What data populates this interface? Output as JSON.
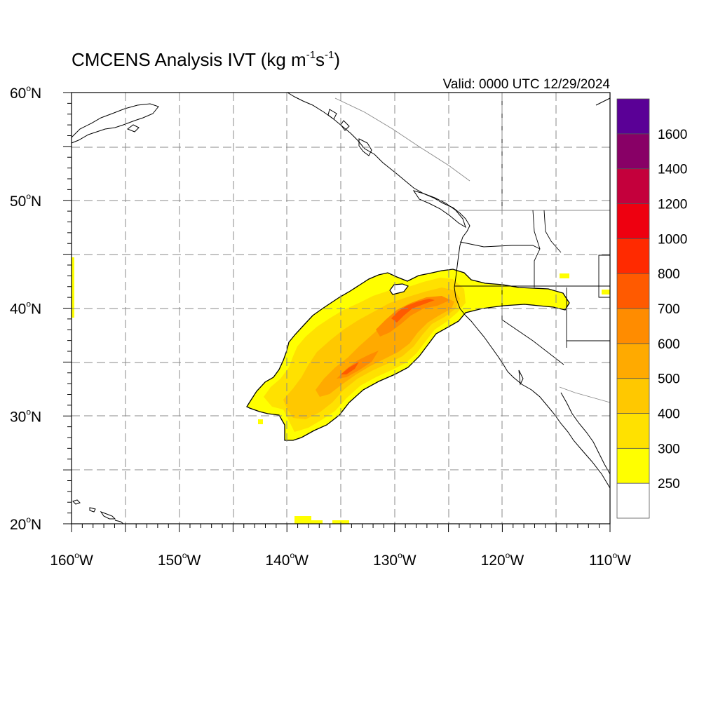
{
  "title": {
    "main": "CMCENS Analysis IVT (kg m",
    "sup1": "-1",
    "mid": "s",
    "sup2": "-1",
    "end": ")"
  },
  "valid": "Valid: 0000 UTC 12/29/2024",
  "axes": {
    "lat_ticks": [
      {
        "deg": "60",
        "unit": "o",
        "hemi": "N",
        "value": 60
      },
      {
        "deg": "50",
        "unit": "o",
        "hemi": "N",
        "value": 50
      },
      {
        "deg": "40",
        "unit": "o",
        "hemi": "N",
        "value": 40
      },
      {
        "deg": "30",
        "unit": "o",
        "hemi": "N",
        "value": 30
      },
      {
        "deg": "20",
        "unit": "o",
        "hemi": "N",
        "value": 20
      }
    ],
    "lon_ticks": [
      {
        "deg": "160",
        "unit": "o",
        "hemi": "W",
        "value": -160
      },
      {
        "deg": "150",
        "unit": "o",
        "hemi": "W",
        "value": -150
      },
      {
        "deg": "140",
        "unit": "o",
        "hemi": "W",
        "value": -140
      },
      {
        "deg": "130",
        "unit": "o",
        "hemi": "W",
        "value": -130
      },
      {
        "deg": "120",
        "unit": "o",
        "hemi": "W",
        "value": -120
      },
      {
        "deg": "110",
        "unit": "o",
        "hemi": "W",
        "value": -110
      }
    ],
    "lon_range": [
      -160,
      -110
    ],
    "lat_range": [
      20,
      60
    ]
  },
  "colorbar": {
    "labels": [
      "250",
      "300",
      "400",
      "500",
      "600",
      "700",
      "800",
      "1000",
      "1200",
      "1400",
      "1600"
    ],
    "colors": [
      "#ffffff",
      "#ffff00",
      "#ffe100",
      "#ffc800",
      "#ffaa00",
      "#ff8c00",
      "#ff5a00",
      "#ff2a00",
      "#ee0010",
      "#c4003c",
      "#880066",
      "#5a0096"
    ]
  },
  "ivt_field": {
    "shading_colors": {
      "250": "#ffff00",
      "300": "#ffe100",
      "400": "#ffc800",
      "500": "#ffaa00",
      "600": "#ff8c00",
      "700": "#ff5a00"
    }
  }
}
